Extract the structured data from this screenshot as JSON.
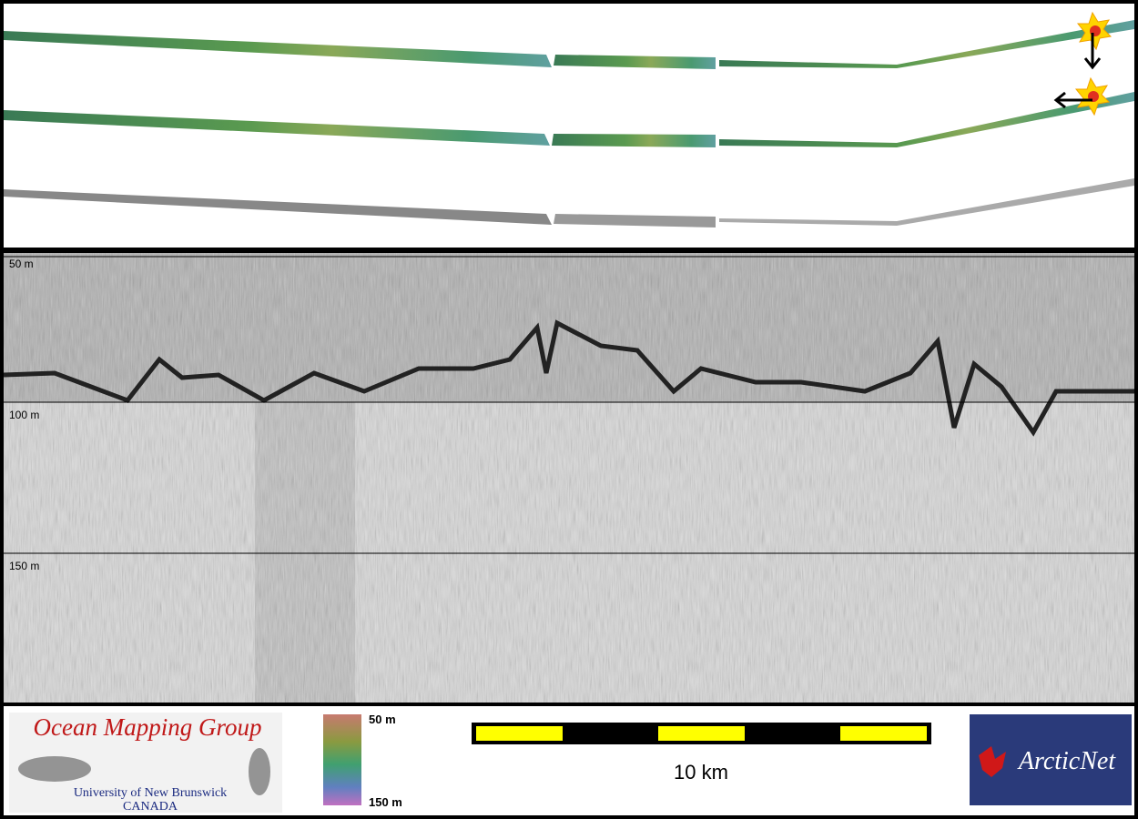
{
  "profile": {
    "depth_labels": [
      "50 m",
      "100 m",
      "150 m"
    ]
  },
  "logo": {
    "title": "Ocean Mapping Group",
    "university": "University of New Brunswick",
    "country": "CANADA"
  },
  "colorbar": {
    "top": "50 m",
    "bottom": "150 m"
  },
  "scalebar": {
    "label": "10 km"
  },
  "partner": {
    "name": "ArcticNet"
  }
}
